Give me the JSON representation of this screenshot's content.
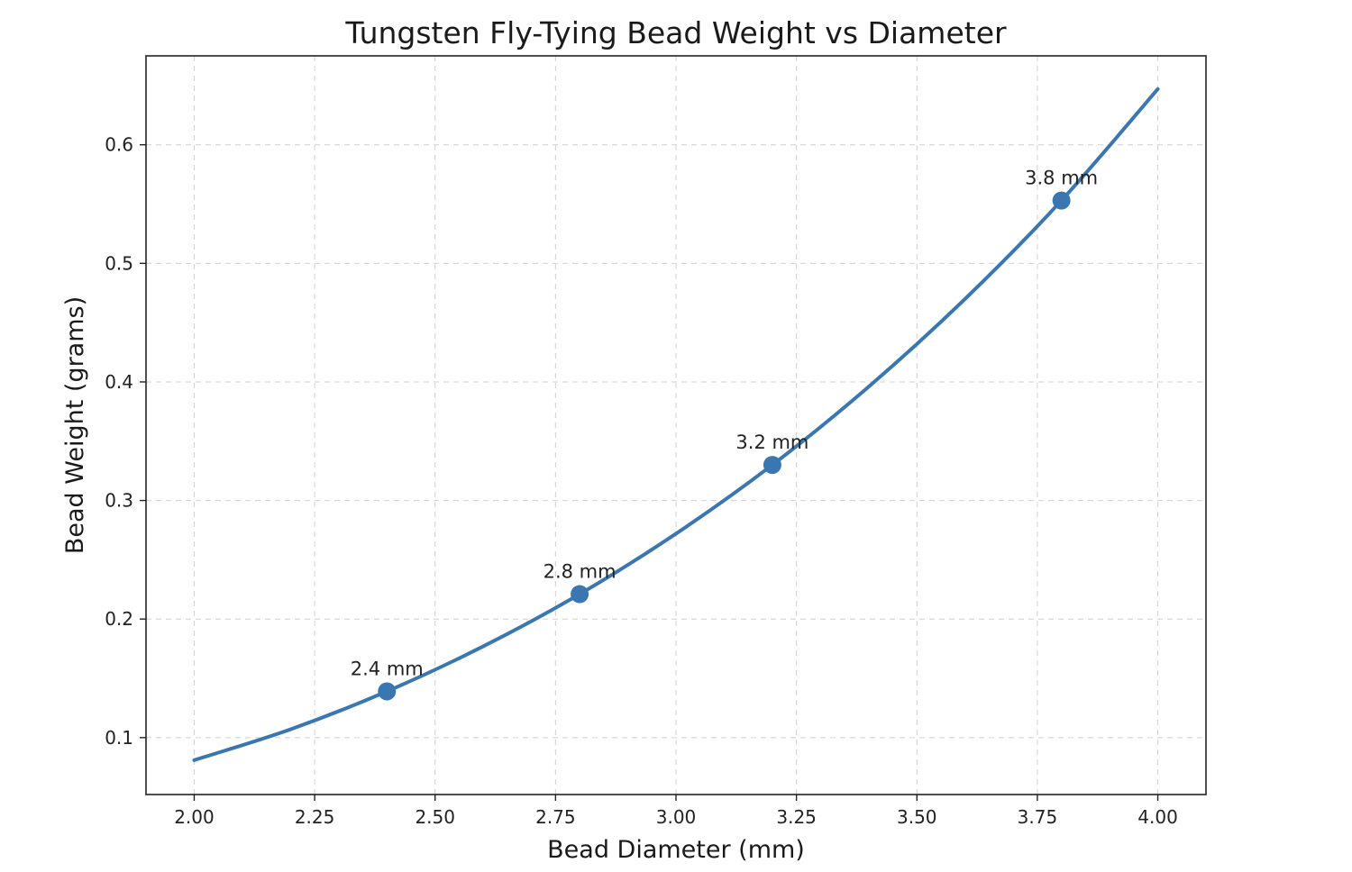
{
  "chart_data": {
    "type": "line",
    "title": "Tungsten Fly-Tying Bead Weight vs Diameter",
    "xlabel": "Bead Diameter (mm)",
    "ylabel": "Bead Weight (grams)",
    "xlim": [
      1.9,
      4.1
    ],
    "ylim": [
      0.052,
      0.675
    ],
    "grid": true,
    "x_ticks": [
      "2.00",
      "2.25",
      "2.50",
      "2.75",
      "3.00",
      "3.25",
      "3.50",
      "3.75",
      "4.00"
    ],
    "y_ticks": [
      "0.1",
      "0.2",
      "0.3",
      "0.4",
      "0.5",
      "0.6"
    ],
    "series": [
      {
        "kind": "curve",
        "x": [
          2.0,
          2.2,
          2.4,
          2.6,
          2.8,
          3.0,
          3.2,
          3.4,
          3.6,
          3.8,
          4.0
        ],
        "values": [
          0.081,
          0.107,
          0.139,
          0.177,
          0.221,
          0.272,
          0.33,
          0.396,
          0.47,
          0.553,
          0.647
        ],
        "color": "#3a76b0"
      },
      {
        "kind": "markers",
        "x": [
          2.4,
          2.8,
          3.2,
          3.8
        ],
        "values": [
          0.139,
          0.221,
          0.33,
          0.553
        ],
        "labels": [
          "2.4 mm",
          "2.8 mm",
          "3.2 mm",
          "3.8 mm"
        ],
        "color": "#3a76b0"
      }
    ]
  }
}
